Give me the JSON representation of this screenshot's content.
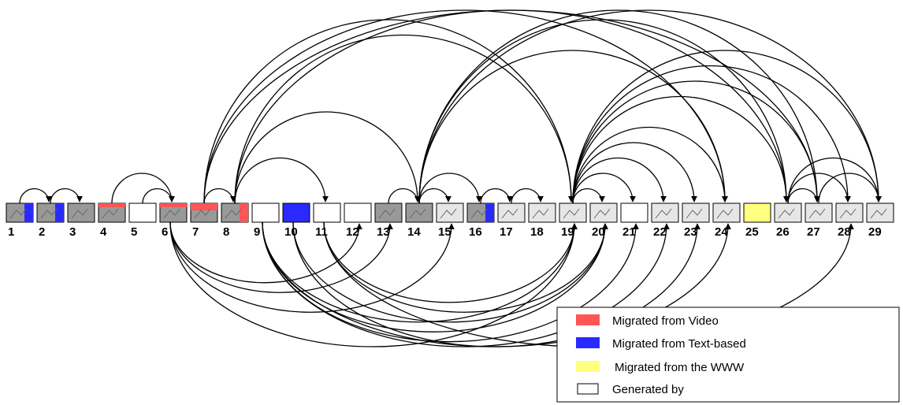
{
  "nodes": [
    {
      "label": "1"
    },
    {
      "label": "2"
    },
    {
      "label": "3"
    },
    {
      "label": "4"
    },
    {
      "label": "5"
    },
    {
      "label": "6"
    },
    {
      "label": "7"
    },
    {
      "label": "8"
    },
    {
      "label": "9"
    },
    {
      "label": "10"
    },
    {
      "label": "11"
    },
    {
      "label": "12"
    },
    {
      "label": "13"
    },
    {
      "label": "14"
    },
    {
      "label": "15"
    },
    {
      "label": "16"
    },
    {
      "label": "17"
    },
    {
      "label": "18"
    },
    {
      "label": "19"
    },
    {
      "label": "20"
    },
    {
      "label": "21"
    },
    {
      "label": "22"
    },
    {
      "label": "23"
    },
    {
      "label": "24"
    },
    {
      "label": "25"
    },
    {
      "label": "26"
    },
    {
      "label": "27"
    },
    {
      "label": "28"
    },
    {
      "label": "29"
    }
  ],
  "legend": [
    {
      "label": "Migrated from Video"
    },
    {
      "label": "Migrated from Text-based"
    },
    {
      "label": "Migrated from the WWW"
    },
    {
      "label": "Generated by"
    }
  ]
}
